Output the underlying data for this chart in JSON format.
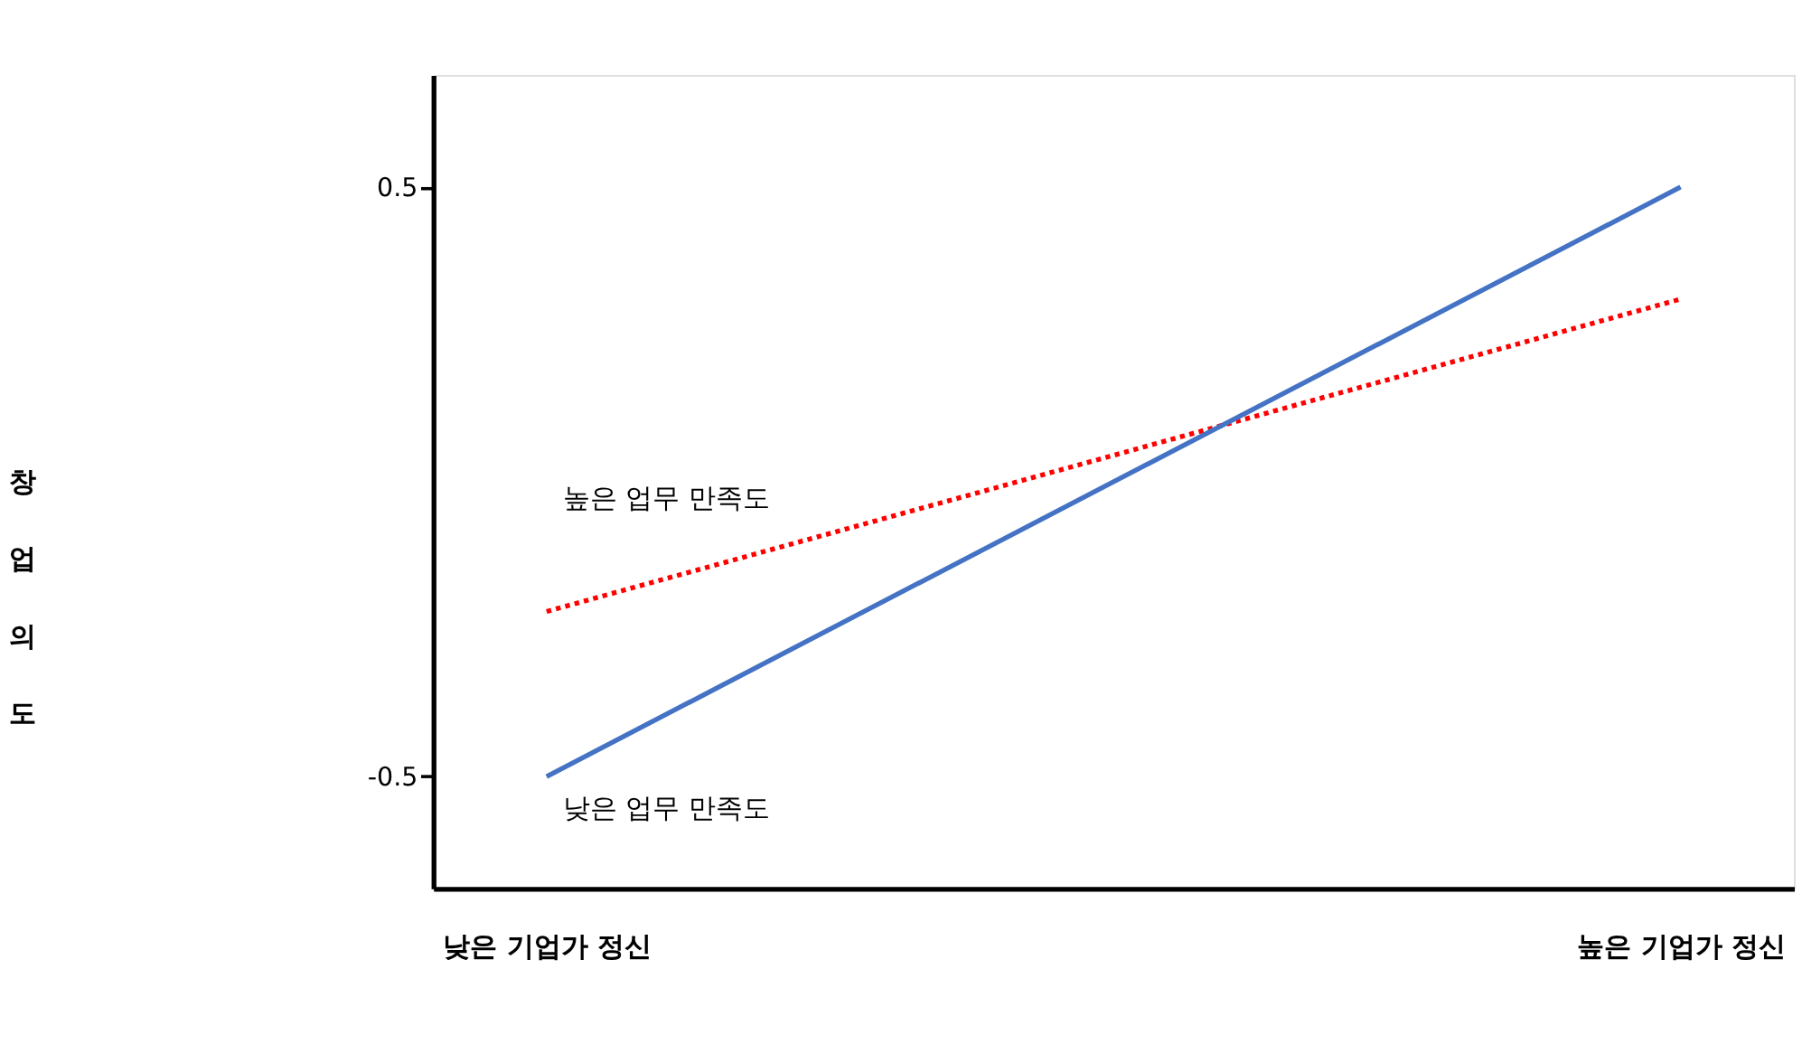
{
  "chart_data": {
    "type": "line",
    "ylabel": "창업의도",
    "categories": [
      "낮은 기업가 정신",
      "높은 기업가 정신"
    ],
    "series": [
      {
        "name": "높은 업무 만족도",
        "color": "#ff0000",
        "values": [
          -0.22,
          0.31
        ],
        "line_style": "dotted"
      },
      {
        "name": "낮은 업무 만족도",
        "color": "#4472c4",
        "values": [
          -0.5,
          0.5
        ],
        "line_style": "solid"
      }
    ],
    "ylim": [
      -0.69,
      0.69
    ],
    "yticks": [
      0.5,
      {
        "value": -0.5,
        "label": "-0.5"
      }
    ],
    "grid": false,
    "marker": "none"
  }
}
